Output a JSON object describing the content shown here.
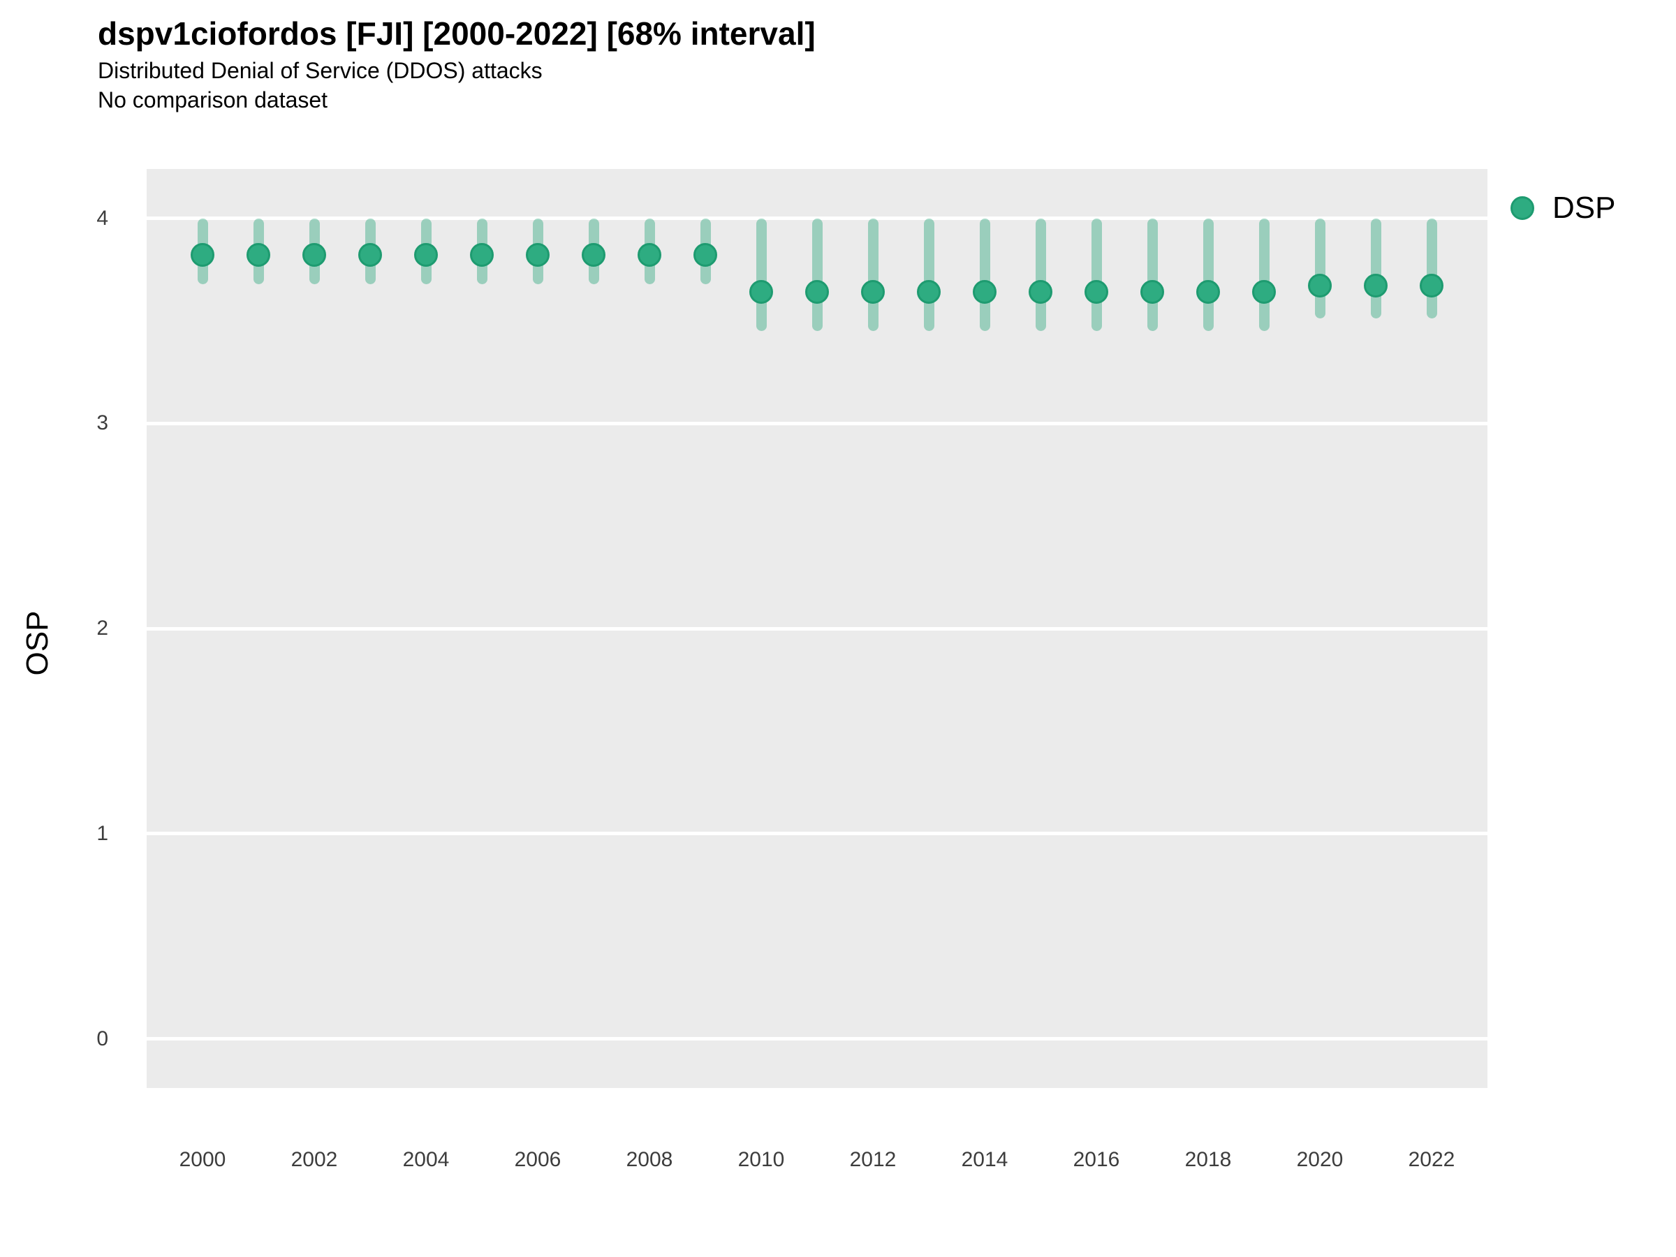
{
  "header": {
    "title": "dspv1ciofordos [FJI] [2000-2022] [68% interval]",
    "subtitle": "Distributed Denial of Service (DDOS) attacks",
    "caption": "No comparison dataset"
  },
  "colors": {
    "panel_bg": "#EBEBEB",
    "gridline": "#FFFFFF",
    "tick_label": "#3d3d3d",
    "marker": "#2EAC81",
    "marker_edge": "#1E9B70",
    "interval": "rgba(43,167,125,0.42)"
  },
  "chart_data": {
    "type": "scatter",
    "title": "dspv1ciofordos [FJI] [2000-2022] [68% interval]",
    "subtitle": "Distributed Denial of Service (DDOS) attacks",
    "caption": "No comparison dataset",
    "interval_label": "68% interval",
    "xlabel": "",
    "ylabel": "OSP",
    "grid": "horizontal-only",
    "legend_position": "right",
    "xlim": [
      1999,
      2023
    ],
    "ylim": [
      -0.24,
      4.24
    ],
    "yticks": [
      0,
      1,
      2,
      3,
      4
    ],
    "xticks": [
      2000,
      2002,
      2004,
      2006,
      2008,
      2010,
      2012,
      2014,
      2016,
      2018,
      2020,
      2022
    ],
    "series": [
      {
        "name": "DSP",
        "marker_color": "#2EAC81",
        "marker_edge_color": "#1E9B70",
        "interval_color": "rgba(43,167,125,0.42)",
        "x": [
          2000,
          2001,
          2002,
          2003,
          2004,
          2005,
          2006,
          2007,
          2008,
          2009,
          2010,
          2011,
          2012,
          2013,
          2014,
          2015,
          2016,
          2017,
          2018,
          2019,
          2020,
          2021,
          2022
        ],
        "y": [
          3.82,
          3.82,
          3.82,
          3.82,
          3.82,
          3.82,
          3.82,
          3.82,
          3.82,
          3.82,
          3.64,
          3.64,
          3.64,
          3.64,
          3.64,
          3.64,
          3.64,
          3.64,
          3.64,
          3.64,
          3.67,
          3.67,
          3.67
        ],
        "lo": [
          3.68,
          3.68,
          3.68,
          3.68,
          3.68,
          3.68,
          3.68,
          3.68,
          3.68,
          3.68,
          3.45,
          3.45,
          3.45,
          3.45,
          3.45,
          3.45,
          3.45,
          3.45,
          3.45,
          3.45,
          3.51,
          3.51,
          3.51
        ],
        "hi": [
          4.0,
          4.0,
          4.0,
          4.0,
          4.0,
          4.0,
          4.0,
          4.0,
          4.0,
          4.0,
          4.0,
          4.0,
          4.0,
          4.0,
          4.0,
          4.0,
          4.0,
          4.0,
          4.0,
          4.0,
          4.0,
          4.0,
          4.0
        ]
      }
    ]
  }
}
